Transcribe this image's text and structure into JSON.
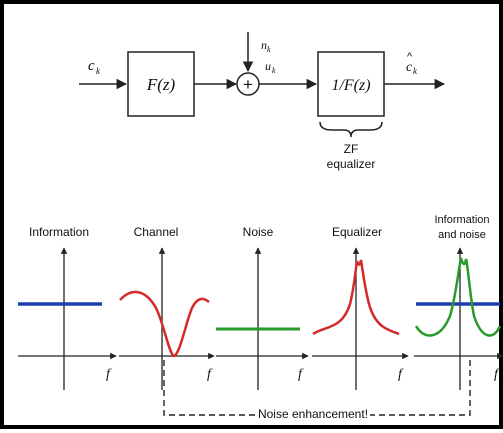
{
  "block_diagram": {
    "input_symbol": "c",
    "input_subscript": "k",
    "channel_block": "F(z)",
    "noise_symbol": "n",
    "noise_subscript": "k",
    "sum_out_symbol": "u",
    "sum_out_subscript": "k",
    "sum_sign": "+",
    "equalizer_block": "1/F(z)",
    "output_symbol": "c",
    "output_subscript": "k",
    "output_hat": "^",
    "brace_label_line1": "ZF",
    "brace_label_line2": "equalizer"
  },
  "panels": [
    {
      "id": "information",
      "title_line1": "Information",
      "title_line2": "",
      "color": "#1b3fae",
      "shape": "flat"
    },
    {
      "id": "channel",
      "title_line1": "Channel",
      "title_line2": "",
      "color": "#d42a2a",
      "shape": "notch"
    },
    {
      "id": "noise",
      "title_line1": "Noise",
      "title_line2": "",
      "color": "#2a9a2a",
      "shape": "flat"
    },
    {
      "id": "equalizer",
      "title_line1": "Equalizer",
      "title_line2": "",
      "color": "#d42a2a",
      "shape": "peak"
    },
    {
      "id": "info-noise",
      "title_line1": "Information",
      "title_line2": "and noise",
      "colors": [
        "#1b3fae",
        "#2a9a2a"
      ],
      "shape": "flat+peak"
    }
  ],
  "axis_label": "f",
  "annotation": "Noise enhancement!"
}
